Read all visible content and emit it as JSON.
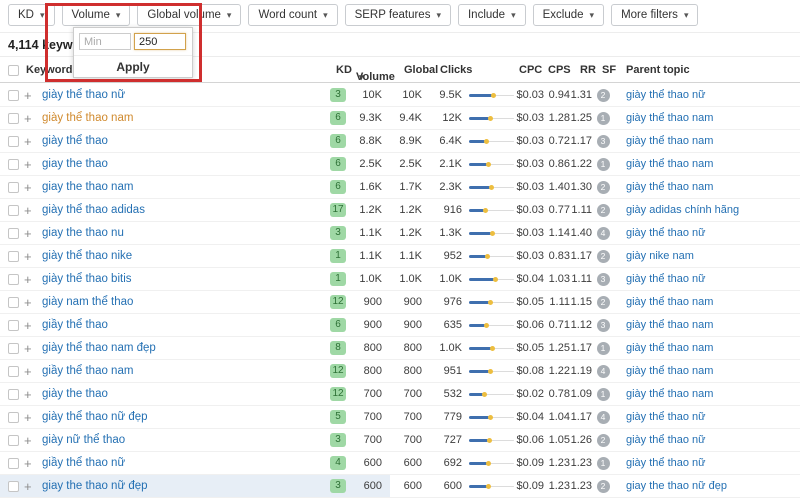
{
  "filter_bar": {
    "buttons": [
      "KD",
      "Volume",
      "Global volume",
      "Word count",
      "SERP features",
      "Include",
      "Exclude",
      "More filters"
    ]
  },
  "volume_dropdown": {
    "min_placeholder": "Min",
    "value": "250",
    "apply_label": "Apply"
  },
  "results_summary": "4,114 keyw",
  "table": {
    "headers": {
      "keyword": "Keyword",
      "kd": "KD",
      "volume": "Volume",
      "global": "Global",
      "clicks": "Clicks",
      "cpc": "CPC",
      "cps": "CPS",
      "rr": "RR",
      "sf": "SF",
      "parent": "Parent topic"
    },
    "rows": [
      {
        "keyword": "giày thể thao nữ",
        "kd": "3",
        "volume": "10K",
        "global": "10K",
        "clicks": "9.5K",
        "bar": 50,
        "cpc": "$0.03",
        "cps": "0.94",
        "rr": "1.31",
        "sf": "2",
        "parent": "giày thể thao nữ"
      },
      {
        "keyword": "giày thể thao nam",
        "visited": true,
        "kd": "6",
        "volume": "9.3K",
        "global": "9.4K",
        "clicks": "12K",
        "bar": 45,
        "cpc": "$0.03",
        "cps": "1.28",
        "rr": "1.25",
        "sf": "1",
        "parent": "giày thể thao nam"
      },
      {
        "keyword": "giày thể thao",
        "kd": "6",
        "volume": "8.8K",
        "global": "8.9K",
        "clicks": "6.4K",
        "bar": 35,
        "cpc": "$0.03",
        "cps": "0.72",
        "rr": "1.17",
        "sf": "3",
        "parent": "giày thể thao nam"
      },
      {
        "keyword": "giay the thao",
        "kd": "6",
        "volume": "2.5K",
        "global": "2.5K",
        "clicks": "2.1K",
        "bar": 40,
        "cpc": "$0.03",
        "cps": "0.86",
        "rr": "1.22",
        "sf": "1",
        "parent": "giày thể thao nam"
      },
      {
        "keyword": "giay the thao nam",
        "kd": "6",
        "volume": "1.6K",
        "global": "1.7K",
        "clicks": "2.3K",
        "bar": 46,
        "cpc": "$0.03",
        "cps": "1.40",
        "rr": "1.30",
        "sf": "2",
        "parent": "giày thể thao nam"
      },
      {
        "keyword": "giày thể thao adidas",
        "kd": "17",
        "volume": "1.2K",
        "global": "1.2K",
        "clicks": "916",
        "bar": 33,
        "cpc": "$0.03",
        "cps": "0.77",
        "rr": "1.11",
        "sf": "2",
        "parent": "giày adidas chính hãng"
      },
      {
        "keyword": "giay the thao nu",
        "kd": "3",
        "volume": "1.1K",
        "global": "1.2K",
        "clicks": "1.3K",
        "bar": 48,
        "cpc": "$0.03",
        "cps": "1.14",
        "rr": "1.40",
        "sf": "4",
        "parent": "giày thể thao nữ"
      },
      {
        "keyword": "giày thể thao nike",
        "kd": "1",
        "volume": "1.1K",
        "global": "1.1K",
        "clicks": "952",
        "bar": 38,
        "cpc": "$0.03",
        "cps": "0.83",
        "rr": "1.17",
        "sf": "2",
        "parent": "giày nike nam"
      },
      {
        "keyword": "giày thể thao bitis",
        "kd": "1",
        "volume": "1.0K",
        "global": "1.0K",
        "clicks": "1.0K",
        "bar": 55,
        "cpc": "$0.04",
        "cps": "1.03",
        "rr": "1.11",
        "sf": "3",
        "parent": "giày thể thao nữ"
      },
      {
        "keyword": "giày nam thể thao",
        "kd": "12",
        "volume": "900",
        "global": "900",
        "clicks": "976",
        "bar": 45,
        "cpc": "$0.05",
        "cps": "1.11",
        "rr": "1.15",
        "sf": "2",
        "parent": "giày thể thao nam"
      },
      {
        "keyword": "giầy thể thao",
        "kd": "6",
        "volume": "900",
        "global": "900",
        "clicks": "635",
        "bar": 36,
        "cpc": "$0.06",
        "cps": "0.71",
        "rr": "1.12",
        "sf": "3",
        "parent": "giày thể thao nam"
      },
      {
        "keyword": "giày thể thao nam đẹp",
        "kd": "8",
        "volume": "800",
        "global": "800",
        "clicks": "1.0K",
        "bar": 48,
        "cpc": "$0.05",
        "cps": "1.25",
        "rr": "1.17",
        "sf": "1",
        "parent": "giày thể thao nam"
      },
      {
        "keyword": "giầy thể thao nam",
        "kd": "12",
        "volume": "800",
        "global": "800",
        "clicks": "951",
        "bar": 45,
        "cpc": "$0.08",
        "cps": "1.22",
        "rr": "1.19",
        "sf": "4",
        "parent": "giày thể thao nam"
      },
      {
        "keyword": "giày the thao",
        "kd": "12",
        "volume": "700",
        "global": "700",
        "clicks": "532",
        "bar": 32,
        "cpc": "$0.02",
        "cps": "0.78",
        "rr": "1.09",
        "sf": "1",
        "parent": "giày thể thao nam"
      },
      {
        "keyword": "giày thể thao nữ đẹp",
        "kd": "5",
        "volume": "700",
        "global": "700",
        "clicks": "779",
        "bar": 44,
        "cpc": "$0.04",
        "cps": "1.04",
        "rr": "1.17",
        "sf": "4",
        "parent": "giày thể thao nữ"
      },
      {
        "keyword": "giày nữ thể thao",
        "kd": "3",
        "volume": "700",
        "global": "700",
        "clicks": "727",
        "bar": 42,
        "cpc": "$0.06",
        "cps": "1.05",
        "rr": "1.26",
        "sf": "2",
        "parent": "giày thể thao nữ"
      },
      {
        "keyword": "giầy thể thao nữ",
        "kd": "4",
        "volume": "600",
        "global": "600",
        "clicks": "692",
        "bar": 40,
        "cpc": "$0.09",
        "cps": "1.23",
        "rr": "1.23",
        "sf": "1",
        "parent": "giày thể thao nữ"
      },
      {
        "keyword": "giay the thao nữ đẹp",
        "partial": true,
        "kd": "3",
        "volume": "600",
        "global": "600",
        "clicks": "600",
        "bar": 40,
        "cpc": "$0.09",
        "cps": "1.23",
        "rr": "1.23",
        "sf": "2",
        "parent": "giay the thao nữ đẹp"
      }
    ]
  },
  "colors": {
    "highlight_red": "#cf2e2e",
    "kd_badge_bg": "#9fd8a5",
    "kd_badge_text": "#2e7136",
    "link_blue": "#2470b3",
    "visited_orange": "#d08a2e",
    "bar_blue": "#3f6fae",
    "bar_dot_yellow": "#edbe3f",
    "sf_badge_gray": "#a8aeb4"
  }
}
